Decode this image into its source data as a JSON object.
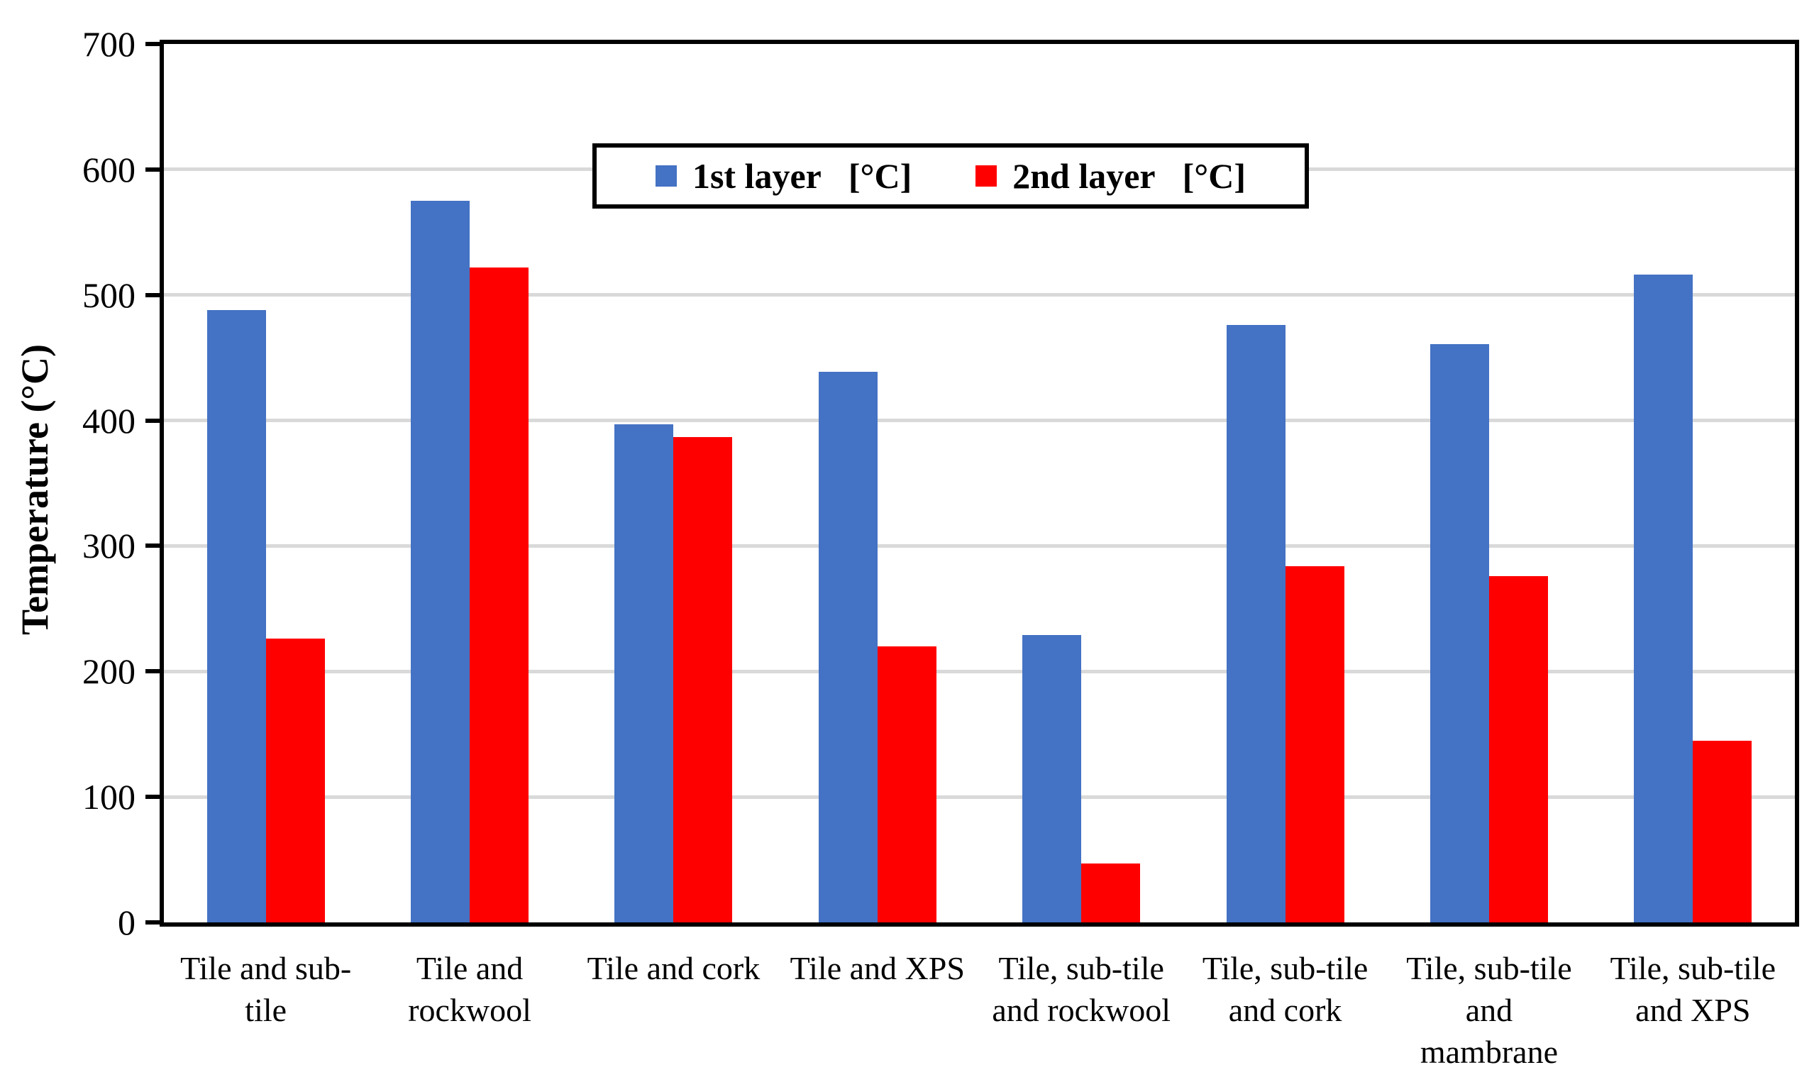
{
  "colors": {
    "series1_blue": "#4472C4",
    "series2_red": "#FF0000",
    "gridline_gray": "#D9D9D9",
    "axis_black": "#000000",
    "background": "#FFFFFF"
  },
  "legend": {
    "items": [
      {
        "label": "1st layer",
        "unit": "[°C]",
        "color": "#4472C4"
      },
      {
        "label": "2nd layer",
        "unit": "[°C]",
        "color": "#FF0000"
      }
    ]
  },
  "y_axis": {
    "title": "Temperature (°C)"
  },
  "chart_data": {
    "type": "bar",
    "title": "",
    "xlabel": "",
    "ylabel": "Temperature (°C)",
    "ylim": [
      0,
      700
    ],
    "yticks": [
      0,
      100,
      200,
      300,
      400,
      500,
      600,
      700
    ],
    "grid": "horizontal",
    "legend_position": "top-center-inside",
    "categories": [
      "Tile and sub-tile",
      "Tile and rockwool",
      "Tile and cork",
      "Tile and XPS",
      "Tile, sub-tile and rockwool",
      "Tile, sub-tile and cork",
      "Tile, sub-tile and mambrane",
      "Tile, sub-tile and XPS"
    ],
    "xtick_display": [
      "Tile and sub-\ntile",
      "Tile and\nrockwool",
      "Tile and cork",
      "Tile and XPS",
      "Tile, sub-tile\nand rockwool",
      "Tile, sub-tile\nand cork",
      "Tile, sub-tile\nand\nmambrane",
      "Tile, sub-tile\nand XPS"
    ],
    "series": [
      {
        "name": "1st layer [°C]",
        "color": "#4472C4",
        "values": [
          488,
          575,
          397,
          439,
          229,
          476,
          461,
          516
        ]
      },
      {
        "name": "2nd layer [°C]",
        "color": "#FF0000",
        "values": [
          226,
          522,
          387,
          220,
          47,
          284,
          276,
          145
        ]
      }
    ]
  }
}
